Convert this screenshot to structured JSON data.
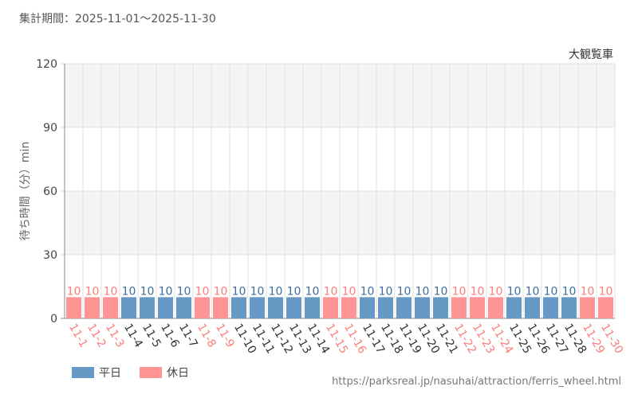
{
  "header": {
    "period_label": "集計期間：2025-11-01～2025-11-30",
    "source_url": "https://parksreal.jp/nasuhai/attraction/ferris_wheel.html"
  },
  "chart_data": {
    "type": "bar",
    "title": "大観覧車",
    "ylabel": "待ち時間（分）min",
    "ylim": [
      0,
      120
    ],
    "yticks": [
      0,
      30,
      60,
      90,
      120
    ],
    "grid": true,
    "legend_position": "bottom-left",
    "categories": [
      "11-1",
      "11-2",
      "11-3",
      "11-4",
      "11-5",
      "11-6",
      "11-7",
      "11-8",
      "11-9",
      "11-10",
      "11-11",
      "11-12",
      "11-13",
      "11-14",
      "11-15",
      "11-16",
      "11-17",
      "11-18",
      "11-19",
      "11-20",
      "11-21",
      "11-22",
      "11-23",
      "11-24",
      "11-25",
      "11-26",
      "11-27",
      "11-28",
      "11-29",
      "11-30"
    ],
    "values": [
      10,
      10,
      10,
      10,
      10,
      10,
      10,
      10,
      10,
      10,
      10,
      10,
      10,
      10,
      10,
      10,
      10,
      10,
      10,
      10,
      10,
      10,
      10,
      10,
      10,
      10,
      10,
      10,
      10,
      10
    ],
    "day_type": [
      "holiday",
      "holiday",
      "holiday",
      "weekday",
      "weekday",
      "weekday",
      "weekday",
      "holiday",
      "holiday",
      "weekday",
      "weekday",
      "weekday",
      "weekday",
      "weekday",
      "holiday",
      "holiday",
      "weekday",
      "weekday",
      "weekday",
      "weekday",
      "weekday",
      "holiday",
      "holiday",
      "holiday",
      "weekday",
      "weekday",
      "weekday",
      "weekday",
      "holiday",
      "holiday"
    ],
    "legend": [
      {
        "key": "weekday",
        "label": "平日",
        "color": "#6699c4"
      },
      {
        "key": "holiday",
        "label": "休日",
        "color": "#ff9494"
      }
    ],
    "colors": {
      "weekday_bar": "#6699c4",
      "holiday_bar": "#ff9494",
      "weekday_text": "#3e6fa0",
      "holiday_text": "#ff7c7c",
      "tick_text": "#444444",
      "band": "#f4f4f4",
      "grid": "#e2e2e2"
    }
  }
}
